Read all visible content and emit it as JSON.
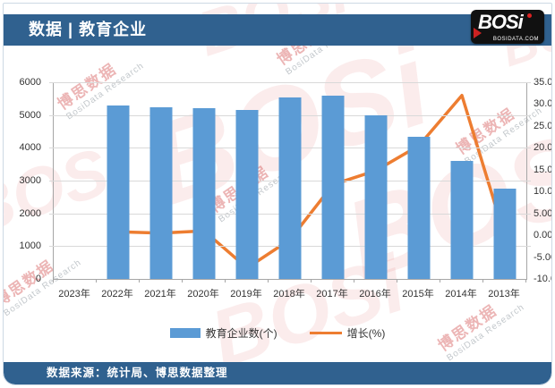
{
  "header": {
    "title_prefix": "数据",
    "separator": "|",
    "title_suffix": "教育企业",
    "bg_color": "#30618F"
  },
  "logo": {
    "text": "BOSi",
    "domain": "BOSIDATA.COM"
  },
  "watermark": {
    "cn": "博思数据",
    "en": "BosiData Research",
    "logo": "BOSi"
  },
  "chart_data": {
    "type": "bar",
    "subtype": "combo bar+line, dual axis",
    "categories": [
      "2023年",
      "2022年",
      "2021年",
      "2020年",
      "2019年",
      "2018年",
      "2017年",
      "2016年",
      "2015年",
      "2014年",
      "2013年"
    ],
    "series": [
      {
        "name": "教育企业数(个)",
        "type": "bar",
        "axis": "left",
        "color": "#5B9BD5",
        "values": [
          null,
          5300,
          5250,
          5200,
          5150,
          5550,
          5600,
          5000,
          4350,
          3600,
          2750
        ]
      },
      {
        "name": "增长(%)",
        "type": "line",
        "axis": "right",
        "color": "#ED7D31",
        "values": [
          null,
          0.8,
          0.5,
          1.0,
          -7.5,
          -1.0,
          11.6,
          14.8,
          20.5,
          32.0,
          -0.3
        ]
      }
    ],
    "left_axis": {
      "min": 0,
      "max": 6000,
      "step": 1000,
      "ticks": [
        "6000",
        "5000",
        "4000",
        "3000",
        "2000",
        "1000",
        "0"
      ]
    },
    "right_axis": {
      "min": -10,
      "max": 35,
      "step": 5,
      "ticks": [
        "35.00",
        "30.00",
        "25.00",
        "20.00",
        "15.00",
        "10.00",
        "5.00",
        "0.00",
        "-5.00",
        "-10.00"
      ]
    },
    "grid": true,
    "legend_position": "bottom",
    "title": ""
  },
  "footer": {
    "source": "数据来源：统计局、博思数据整理",
    "bg_color": "#30618F"
  }
}
